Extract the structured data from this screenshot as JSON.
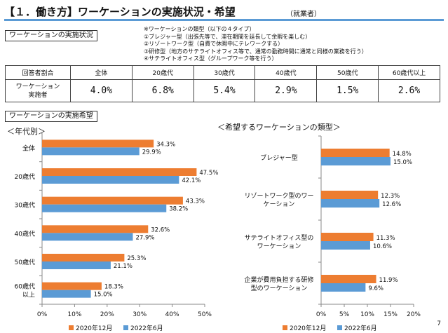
{
  "header": {
    "title": "【１．働き方】ワーケーションの実施状況・希望",
    "subtitle": "（就業者）",
    "page_number": "7"
  },
  "status_section": {
    "label": "ワーケーションの実施状況",
    "notes": [
      "※ワーケーションの類型（以下の４タイプ）",
      "①ブレジャー型（出張先等で、滞在期間を延長して余暇を楽しむ）",
      "②リゾートワーク型（自費で休暇中にテレワークする）",
      "③研修型（地方のサテライトオフィス等で、通常の勤務時間に通常と同様の業務を行う）",
      "④サテライトオフィス型（グループワーク等を行う）"
    ],
    "table": {
      "headers": [
        "回答者割合",
        "全体",
        "20歳代",
        "30歳代",
        "40歳代",
        "50歳代",
        "60歳代以上"
      ],
      "row_label_lines": [
        "ワーケーション",
        "実施者"
      ],
      "values": [
        "4.0%",
        "6.8%",
        "5.4%",
        "2.9%",
        "1.5%",
        "2.6%"
      ]
    }
  },
  "hope_section": {
    "label": "ワーケーションの実施希望",
    "left_heading": "＜年代別＞",
    "right_heading": "＜希望するワーケーションの類型＞"
  },
  "colors": {
    "orange": "#ed7d31",
    "blue": "#5b9bd5",
    "title_rule": "#5b9bd5"
  },
  "chart_data": [
    {
      "type": "bar",
      "orientation": "horizontal",
      "categories": [
        [
          "全体"
        ],
        [
          "20歳代"
        ],
        [
          "30歳代"
        ],
        [
          "40歳代"
        ],
        [
          "50歳代"
        ],
        [
          "60歳代",
          "以上"
        ]
      ],
      "series": [
        {
          "name": "2020年12月",
          "color": "#ed7d31",
          "values": [
            34.3,
            47.5,
            43.3,
            32.6,
            25.3,
            18.3
          ]
        },
        {
          "name": "2022年6月",
          "color": "#5b9bd5",
          "values": [
            29.9,
            42.1,
            38.2,
            27.9,
            21.1,
            15.0
          ]
        }
      ],
      "value_labels": [
        [
          "34.3%",
          "47.5%",
          "43.3%",
          "32.6%",
          "25.3%",
          "18.3%"
        ],
        [
          "29.9%",
          "42.1%",
          "38.2%",
          "27.9%",
          "21.1%",
          "15.0%"
        ]
      ],
      "xlim": [
        0,
        50
      ],
      "xticks": [
        "0%",
        "10%",
        "20%",
        "30%",
        "40%",
        "50%"
      ],
      "grid": false,
      "legend": "bottom"
    },
    {
      "type": "bar",
      "orientation": "horizontal",
      "categories": [
        [
          "ブレジャー型"
        ],
        [
          "リゾートワーク型のワー",
          "ケーション"
        ],
        [
          "サテライトオフィス型の",
          "ワーケーション"
        ],
        [
          "企業が費用負担する研修",
          "型のワーケーション"
        ]
      ],
      "series": [
        {
          "name": "2020年12月",
          "color": "#ed7d31",
          "values": [
            14.8,
            12.3,
            11.3,
            11.9
          ]
        },
        {
          "name": "2022年6月",
          "color": "#5b9bd5",
          "values": [
            15.0,
            12.6,
            10.6,
            9.6
          ]
        }
      ],
      "value_labels": [
        [
          "14.8%",
          "12.3%",
          "11.3%",
          "11.9%"
        ],
        [
          "15.0%",
          "12.6%",
          "10.6%",
          "9.6%"
        ]
      ],
      "xlim": [
        0,
        20
      ],
      "xticks": [
        "0%",
        "5%",
        "10%",
        "15%",
        "20%"
      ],
      "grid": false,
      "legend": "bottom"
    }
  ]
}
